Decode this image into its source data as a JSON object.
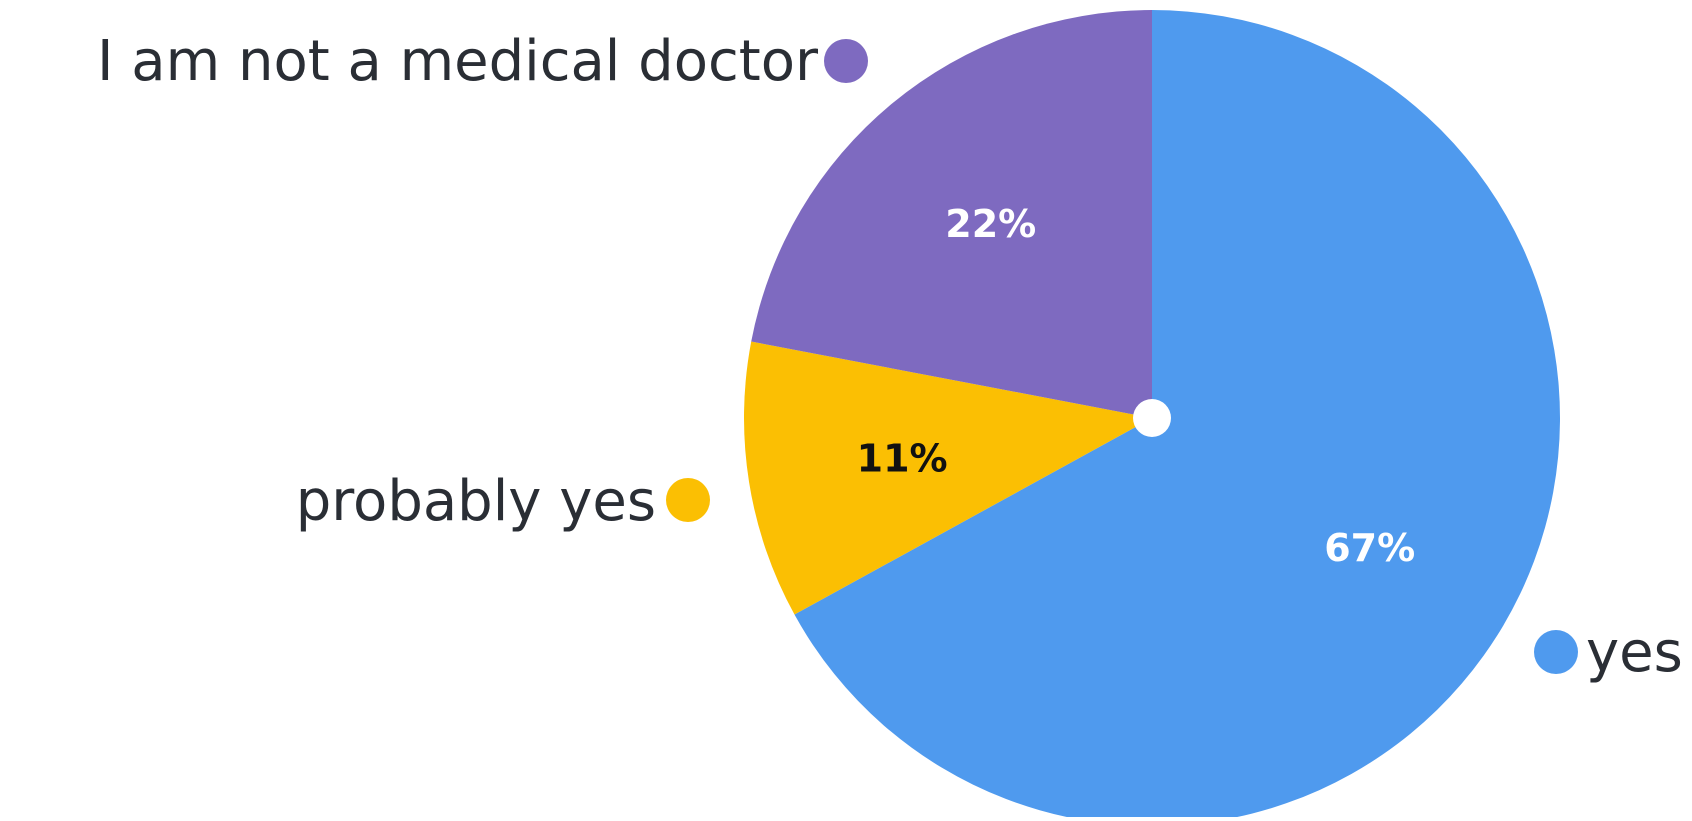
{
  "chart_data": {
    "type": "pie",
    "categories": [
      "yes",
      "probably yes",
      "I am not a medical doctor"
    ],
    "values": [
      67,
      11,
      22
    ],
    "value_labels": [
      "67%",
      "11%",
      "22%"
    ],
    "colors": [
      "#4f9aee",
      "#fbbf03",
      "#7e6ac0"
    ],
    "value_label_colors": [
      "#ffffff",
      "#111111",
      "#ffffff"
    ],
    "center_dot_color": "#ffffff",
    "legend_text_color": "#2a2e35",
    "start": "top",
    "direction": "clockwise",
    "legend_placement": "beside-slices"
  }
}
